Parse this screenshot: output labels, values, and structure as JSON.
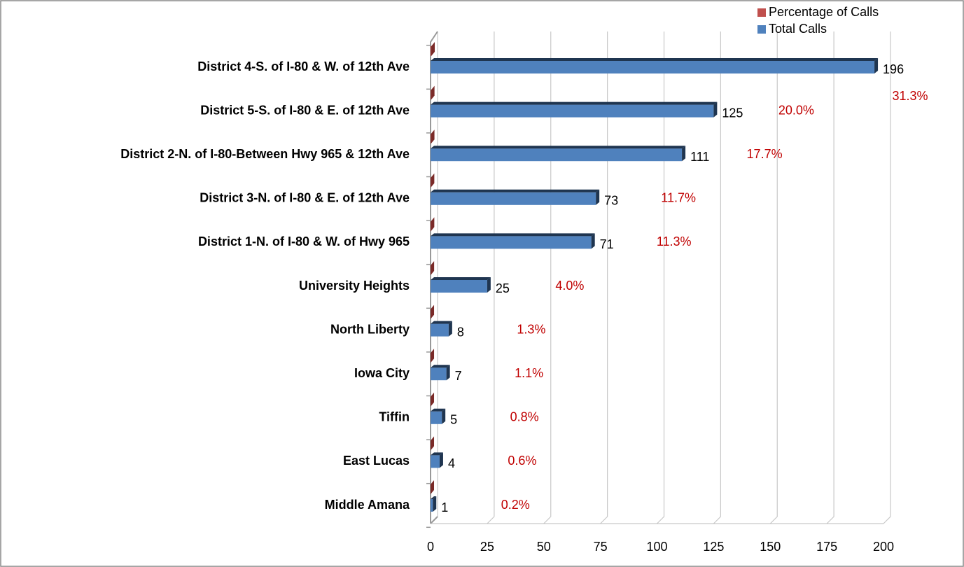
{
  "chart_data": {
    "type": "bar",
    "orientation": "horizontal",
    "categories": [
      "District 4-S. of I-80 & W. of 12th Ave",
      "District 5-S. of I-80 & E. of 12th Ave",
      "District 2-N. of I-80-Between Hwy 965 & 12th Ave",
      "District 3-N. of I-80 & E. of 12th Ave",
      "District 1-N. of I-80 & W. of Hwy 965",
      "University Heights",
      "North Liberty",
      "Iowa City",
      "Tiffin",
      "East Lucas",
      "Middle Amana"
    ],
    "series": [
      {
        "name": "Total Calls",
        "color": "#4f81bd",
        "values": [
          196,
          125,
          111,
          73,
          71,
          25,
          8,
          7,
          5,
          4,
          1
        ]
      },
      {
        "name": "Percentage of Calls",
        "color": "#c0504d",
        "values": [
          0.313,
          0.2,
          0.177,
          0.117,
          0.113,
          0.04,
          0.013,
          0.011,
          0.008,
          0.006,
          0.002
        ],
        "value_labels": [
          "31.3%",
          "20.0%",
          "17.7%",
          "11.7%",
          "11.3%",
          "4.0%",
          "1.3%",
          "1.1%",
          "0.8%",
          "0.6%",
          "0.2%"
        ]
      }
    ],
    "xlim": [
      0,
      200
    ],
    "xticks": [
      0,
      25,
      50,
      75,
      100,
      125,
      150,
      175,
      200
    ],
    "grid": true,
    "legend": "top-right"
  }
}
